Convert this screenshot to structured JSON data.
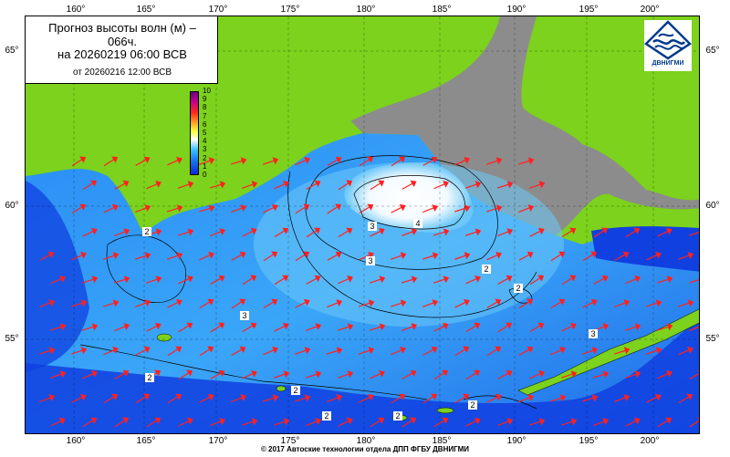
{
  "title": {
    "line1": "Прогноз высоты волн (м) –\n066ч.",
    "line2": "на 20260219 06:00 ВСВ",
    "line3": "от 20260216 12:00 ВСВ"
  },
  "logo": {
    "text": "ДВНИГМИ",
    "icon": "dvnigmi-wave-logo"
  },
  "colorbar": {
    "labels": [
      "10",
      "9",
      "8",
      "7",
      "6",
      "5",
      "4",
      "3",
      "2",
      "1",
      "0"
    ],
    "colors": [
      "#0a2ad6",
      "#1a7cf0",
      "#3dc3ff",
      "#ffffff",
      "#ffff40",
      "#ffa020",
      "#ff2a1a",
      "#c4008c",
      "#6a0080"
    ]
  },
  "axes": {
    "lon_labels": [
      "160°",
      "165°",
      "170°",
      "175°",
      "180°",
      "185°",
      "190°",
      "195°",
      "200°"
    ],
    "lat_labels": [
      "65°",
      "60°",
      "55°"
    ]
  },
  "contour_labels": [
    "2",
    "2",
    "3",
    "2",
    "2",
    "2",
    "3",
    "2",
    "2",
    "3",
    "3",
    "4",
    "2"
  ],
  "colors": {
    "land": "#7cd21c",
    "ice": "#8c8c8c",
    "sea_deep": "#1040e0",
    "sea_mid": "#2a8ef5",
    "sea_light": "#6cc8f8",
    "peak": "#ffffff",
    "arrow": "#ff2020"
  },
  "copyright": "© 2017 Автоские технологии отдела ДПП ФГБУ ДВНИГМИ"
}
